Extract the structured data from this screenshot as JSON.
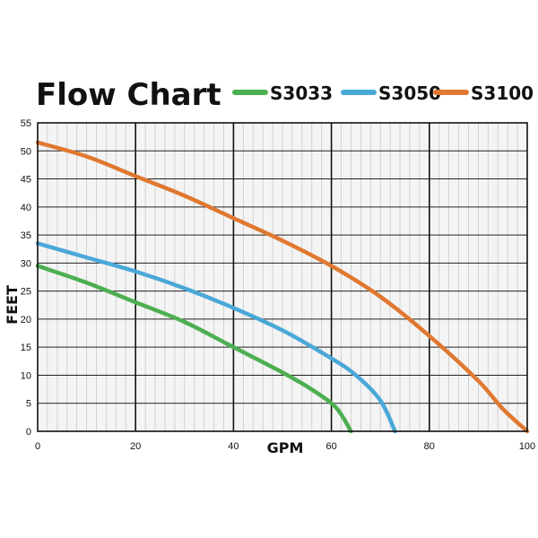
{
  "chart_data": {
    "type": "line",
    "title": "Flow Chart",
    "xlabel": "GPM",
    "ylabel": "FEET",
    "xlim": [
      0,
      100
    ],
    "ylim": [
      0,
      55
    ],
    "xticks": [
      "0",
      "20",
      "40",
      "60",
      "80",
      "100"
    ],
    "yticks": [
      "0",
      "5",
      "10",
      "15",
      "20",
      "25",
      "30",
      "35",
      "40",
      "45",
      "50",
      "55"
    ],
    "grid": true,
    "legend_position": "top-right",
    "series": [
      {
        "name": "S3033",
        "color": "#4caf50",
        "points": [
          [
            0,
            29.5
          ],
          [
            10,
            26.5
          ],
          [
            20,
            23
          ],
          [
            30,
            19.5
          ],
          [
            40,
            15
          ],
          [
            50,
            10.5
          ],
          [
            55,
            8
          ],
          [
            60,
            5
          ],
          [
            62,
            3
          ],
          [
            64,
            0
          ]
        ]
      },
      {
        "name": "S3050",
        "color": "#4aa8d8",
        "points": [
          [
            0,
            33.5
          ],
          [
            10,
            31
          ],
          [
            20,
            28.5
          ],
          [
            30,
            25.5
          ],
          [
            40,
            22
          ],
          [
            50,
            18
          ],
          [
            60,
            13
          ],
          [
            65,
            10
          ],
          [
            70,
            5.5
          ],
          [
            73,
            0
          ]
        ]
      },
      {
        "name": "S3100",
        "color": "#e07830",
        "points": [
          [
            0,
            51.5
          ],
          [
            10,
            49
          ],
          [
            20,
            45.5
          ],
          [
            30,
            42
          ],
          [
            40,
            38
          ],
          [
            50,
            34
          ],
          [
            60,
            29.5
          ],
          [
            70,
            24
          ],
          [
            80,
            17
          ],
          [
            90,
            9
          ],
          [
            95,
            4
          ],
          [
            100,
            0
          ]
        ]
      }
    ]
  }
}
